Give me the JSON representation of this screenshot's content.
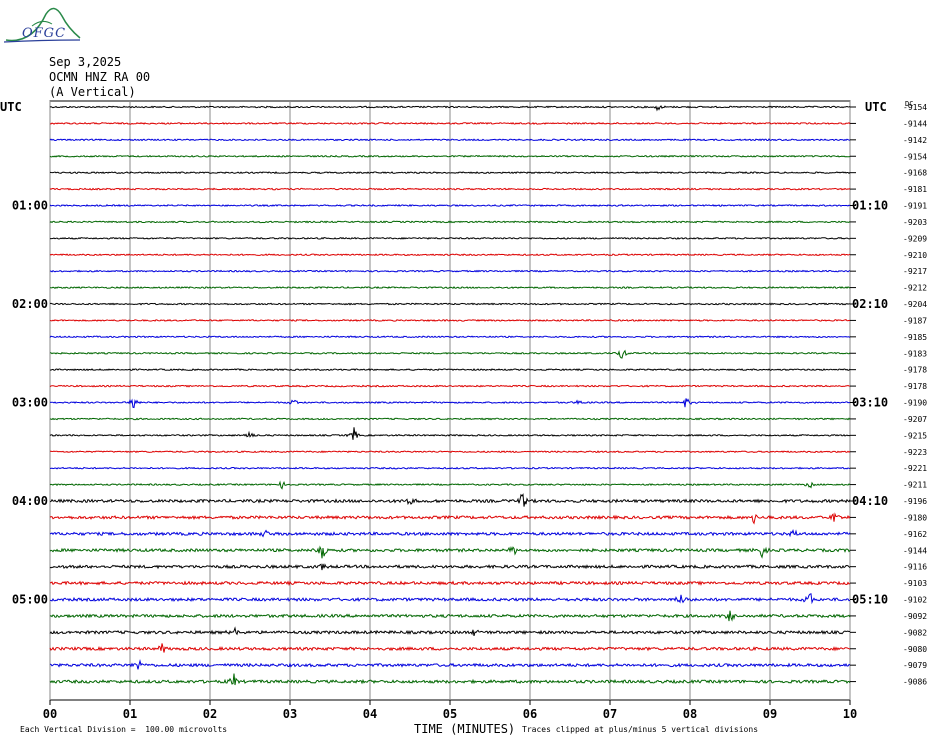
{
  "header": {
    "date": "Sep 3,2025",
    "station": "OCMN HNZ RA 00",
    "component": "(A Vertical)",
    "logo_text": "OFGC"
  },
  "labels": {
    "utc_left": "UTC",
    "utc_right": "UTC",
    "dc_label": "DC",
    "x_title": "TIME (MINUTES)",
    "footer_left": "Each Vertical Division =  100.00 microvolts",
    "footer_right": "Traces clipped at plus/minus 5 vertical divisions"
  },
  "colors": {
    "trace_cycle": [
      "#000000",
      "#dd0000",
      "#0000dd",
      "#006600"
    ],
    "grid": "#000000",
    "logo_green": "#2a8a4a",
    "logo_blue": "#2a3f9a"
  },
  "chart_data": {
    "type": "line",
    "title": "",
    "xlabel": "TIME (MINUTES)",
    "x_ticks": [
      "00",
      "01",
      "02",
      "03",
      "04",
      "05",
      "06",
      "07",
      "08",
      "09",
      "10"
    ],
    "xlim": [
      0,
      10
    ],
    "left_hour_labels": [
      {
        "row": 6,
        "label": "01:00"
      },
      {
        "row": 12,
        "label": "02:00"
      },
      {
        "row": 18,
        "label": "03:00"
      },
      {
        "row": 24,
        "label": "04:00"
      },
      {
        "row": 30,
        "label": "05:00"
      }
    ],
    "right_hour_labels": [
      {
        "row": 6,
        "label": "01:10"
      },
      {
        "row": 12,
        "label": "02:10"
      },
      {
        "row": 18,
        "label": "03:10"
      },
      {
        "row": 24,
        "label": "04:10"
      },
      {
        "row": 30,
        "label": "05:10"
      }
    ],
    "dc_offsets": [
      "-9154",
      "-9144",
      "-9142",
      "-9154",
      "-9168",
      "-9181",
      "-9191",
      "-9203",
      "-9209",
      "-9210",
      "-9217",
      "-9212",
      "-9204",
      "-9187",
      "-9185",
      "-9183",
      "-9178",
      "-9178",
      "-9190",
      "-9207",
      "-9215",
      "-9223",
      "-9221",
      "-9211",
      "-9196",
      "-9180",
      "-9162",
      "-9144",
      "-9116",
      "-9103",
      "-9102",
      "-9092",
      "-9082",
      "-9080",
      "-9079",
      "-9086"
    ],
    "events": [
      {
        "row": 0,
        "minute": 7.6,
        "amp": 2
      },
      {
        "row": 15,
        "minute": 7.15,
        "amp": 4
      },
      {
        "row": 18,
        "minute": 1.05,
        "amp": 4
      },
      {
        "row": 18,
        "minute": 3.05,
        "amp": 2
      },
      {
        "row": 18,
        "minute": 6.6,
        "amp": 2
      },
      {
        "row": 18,
        "minute": 7.95,
        "amp": 3
      },
      {
        "row": 20,
        "minute": 2.5,
        "amp": 3
      },
      {
        "row": 20,
        "minute": 3.8,
        "amp": 5
      },
      {
        "row": 23,
        "minute": 2.9,
        "amp": 2
      },
      {
        "row": 23,
        "minute": 9.5,
        "amp": 2
      },
      {
        "row": 24,
        "minute": 4.5,
        "amp": 3
      },
      {
        "row": 24,
        "minute": 5.9,
        "amp": 5
      },
      {
        "row": 25,
        "minute": 9.8,
        "amp": 4
      },
      {
        "row": 25,
        "minute": 8.8,
        "amp": 3
      },
      {
        "row": 26,
        "minute": 2.7,
        "amp": 2
      },
      {
        "row": 26,
        "minute": 9.3,
        "amp": 2
      },
      {
        "row": 27,
        "minute": 3.4,
        "amp": 5
      },
      {
        "row": 27,
        "minute": 5.8,
        "amp": 3
      },
      {
        "row": 27,
        "minute": 8.9,
        "amp": 4
      },
      {
        "row": 28,
        "minute": 3.4,
        "amp": 3
      },
      {
        "row": 30,
        "minute": 7.9,
        "amp": 4
      },
      {
        "row": 30,
        "minute": 9.5,
        "amp": 4
      },
      {
        "row": 31,
        "minute": 8.5,
        "amp": 3
      },
      {
        "row": 32,
        "minute": 2.3,
        "amp": 3
      },
      {
        "row": 32,
        "minute": 5.3,
        "amp": 2
      },
      {
        "row": 33,
        "minute": 1.4,
        "amp": 3
      },
      {
        "row": 34,
        "minute": 1.1,
        "amp": 3
      },
      {
        "row": 35,
        "minute": 2.3,
        "amp": 4
      }
    ]
  }
}
